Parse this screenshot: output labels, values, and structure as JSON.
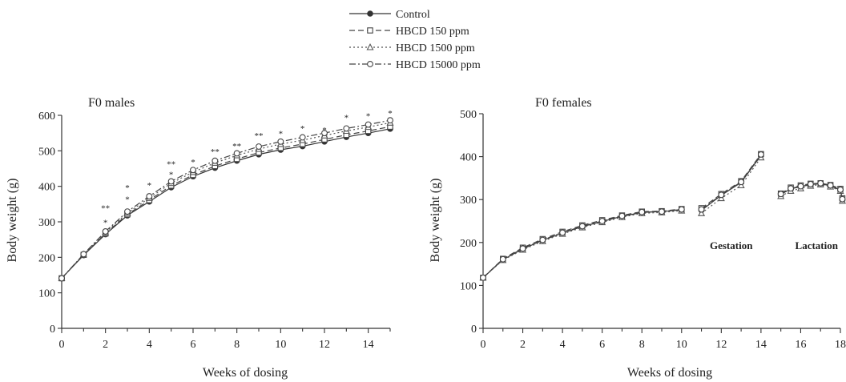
{
  "legend": [
    {
      "label": "Control",
      "series": "control"
    },
    {
      "label": "HBCD 150 ppm",
      "series": "hbcd150"
    },
    {
      "label": "HBCD 1500 ppm",
      "series": "hbcd1500"
    },
    {
      "label": "HBCD 15000 ppm",
      "series": "hbcd15000"
    }
  ],
  "styles": {
    "control": {
      "dash": "",
      "marker": "circle-filled",
      "color": "#333333"
    },
    "hbcd150": {
      "dash": "7,4",
      "marker": "square",
      "color": "#444444"
    },
    "hbcd1500": {
      "dash": "2,3",
      "marker": "triangle",
      "color": "#555555"
    },
    "hbcd15000": {
      "dash": "8,3,2,3",
      "marker": "circle-open",
      "color": "#444444"
    }
  },
  "chart_data": [
    {
      "type": "line",
      "title": "F0 males",
      "xlabel": "Weeks of dosing",
      "ylabel": "Body weight (g)",
      "xlim": [
        0,
        15
      ],
      "ylim": [
        0,
        600
      ],
      "xticks": [
        0,
        2,
        4,
        6,
        8,
        10,
        12,
        14
      ],
      "yticks": [
        0,
        100,
        200,
        300,
        400,
        500,
        600
      ],
      "x": [
        0,
        1,
        2,
        3,
        4,
        5,
        6,
        7,
        8,
        9,
        10,
        11,
        12,
        13,
        14,
        15
      ],
      "series": [
        {
          "name": "Control",
          "key": "control",
          "segments": [
            [
              141,
              206,
              265,
              318,
              357,
              397,
              428,
              452,
              472,
              490,
              503,
              513,
              526,
              539,
              550,
              562
            ]
          ]
        },
        {
          "name": "HBCD 150 ppm",
          "key": "hbcd150",
          "segments": [
            [
              141,
              207,
              267,
              321,
              361,
              402,
              432,
              457,
              477,
              495,
              508,
              519,
              532,
              545,
              556,
              568
            ]
          ]
        },
        {
          "name": "HBCD 1500 ppm",
          "key": "hbcd1500",
          "segments": [
            [
              141,
              208,
              270,
              325,
              367,
              409,
              440,
              466,
              487,
              505,
              519,
              530,
              543,
              556,
              567,
              579
            ]
          ]
        },
        {
          "name": "HBCD 15000 ppm",
          "key": "hbcd15000",
          "segments": [
            [
              141,
              209,
              273,
              329,
              372,
              414,
              446,
              472,
              493,
              512,
              526,
              538,
              550,
              563,
              574,
              586
            ]
          ]
        }
      ],
      "annotations": [
        {
          "x": 2,
          "y": 330,
          "text": "**"
        },
        {
          "x": 2,
          "y": 290,
          "text": "*"
        },
        {
          "x": 3,
          "y": 388,
          "text": "*"
        },
        {
          "x": 3,
          "y": 355,
          "text": "*"
        },
        {
          "x": 4,
          "y": 395,
          "text": "*"
        },
        {
          "x": 5,
          "y": 455,
          "text": "**"
        },
        {
          "x": 5,
          "y": 425,
          "text": "*"
        },
        {
          "x": 6,
          "y": 460,
          "text": "*"
        },
        {
          "x": 7,
          "y": 490,
          "text": "**"
        },
        {
          "x": 8,
          "y": 505,
          "text": "**"
        },
        {
          "x": 9,
          "y": 535,
          "text": "**"
        },
        {
          "x": 10,
          "y": 540,
          "text": "*"
        },
        {
          "x": 11,
          "y": 555,
          "text": "*"
        },
        {
          "x": 12,
          "y": 550,
          "text": "*"
        },
        {
          "x": 13,
          "y": 585,
          "text": "*"
        },
        {
          "x": 14,
          "y": 590,
          "text": "*"
        },
        {
          "x": 15,
          "y": 598,
          "text": "*"
        }
      ]
    },
    {
      "type": "line",
      "title": "F0 females",
      "xlabel": "Weeks of dosing",
      "ylabel": "Body weight (g)",
      "xlim": [
        0,
        18
      ],
      "ylim": [
        0,
        500
      ],
      "xticks": [
        0,
        2,
        4,
        6,
        8,
        10,
        12,
        14,
        16,
        18
      ],
      "yticks": [
        0,
        100,
        200,
        300,
        400,
        500
      ],
      "phase_labels": [
        {
          "text": "Gestation",
          "x": 12.5,
          "y": 185
        },
        {
          "text": "Lactation",
          "x": 16.8,
          "y": 185
        }
      ],
      "series": [
        {
          "name": "Control",
          "key": "control",
          "segments": [
            {
              "x": [
                0,
                1,
                2,
                3,
                4,
                5,
                6,
                7,
                8,
                9,
                10
              ],
              "y": [
                118,
                160,
                185,
                205,
                222,
                237,
                249,
                261,
                270,
                272,
                276
              ]
            },
            {
              "x": [
                11,
                12,
                13,
                14
              ],
              "y": [
                275,
                310,
                340,
                403
              ]
            },
            {
              "x": [
                15,
                15.5,
                16,
                16.5,
                17,
                17.5,
                18,
                18.1
              ],
              "y": [
                312,
                325,
                330,
                335,
                337,
                332,
                322,
                300
              ]
            }
          ]
        },
        {
          "name": "HBCD 150 ppm",
          "key": "hbcd150",
          "segments": [
            {
              "x": [
                0,
                1,
                2,
                3,
                4,
                5,
                6,
                7,
                8,
                9,
                10
              ],
              "y": [
                118,
                162,
                188,
                208,
                225,
                240,
                252,
                263,
                272,
                273,
                278
              ]
            },
            {
              "x": [
                11,
                12,
                13,
                14
              ],
              "y": [
                280,
                313,
                343,
                406
              ]
            },
            {
              "x": [
                15,
                15.5,
                16,
                16.5,
                17,
                17.5,
                18,
                18.1
              ],
              "y": [
                314,
                328,
                333,
                337,
                338,
                334,
                325,
                303
              ]
            }
          ]
        },
        {
          "name": "HBCD 1500 ppm",
          "key": "hbcd1500",
          "segments": [
            {
              "x": [
                0,
                1,
                2,
                3,
                4,
                5,
                6,
                7,
                8,
                9,
                10
              ],
              "y": [
                118,
                159,
                183,
                203,
                220,
                235,
                247,
                259,
                268,
                270,
                274
              ]
            },
            {
              "x": [
                11,
                12,
                13,
                14
              ],
              "y": [
                268,
                303,
                333,
                398
              ]
            },
            {
              "x": [
                15,
                15.5,
                16,
                16.5,
                17,
                17.5,
                18,
                18.1
              ],
              "y": [
                308,
                320,
                326,
                332,
                335,
                330,
                320,
                297
              ]
            }
          ]
        },
        {
          "name": "HBCD 15000 ppm",
          "key": "hbcd15000",
          "segments": [
            {
              "x": [
                0,
                1,
                2,
                3,
                4,
                5,
                6,
                7,
                8,
                9,
                10
              ],
              "y": [
                118,
                161,
                186,
                206,
                223,
                238,
                250,
                262,
                271,
                272,
                277
              ]
            },
            {
              "x": [
                11,
                12,
                13,
                14
              ],
              "y": [
                277,
                311,
                341,
                405
              ]
            },
            {
              "x": [
                15,
                15.5,
                16,
                16.5,
                17,
                17.5,
                18,
                18.1
              ],
              "y": [
                313,
                326,
                331,
                336,
                338,
                333,
                323,
                301
              ]
            }
          ]
        }
      ]
    }
  ]
}
